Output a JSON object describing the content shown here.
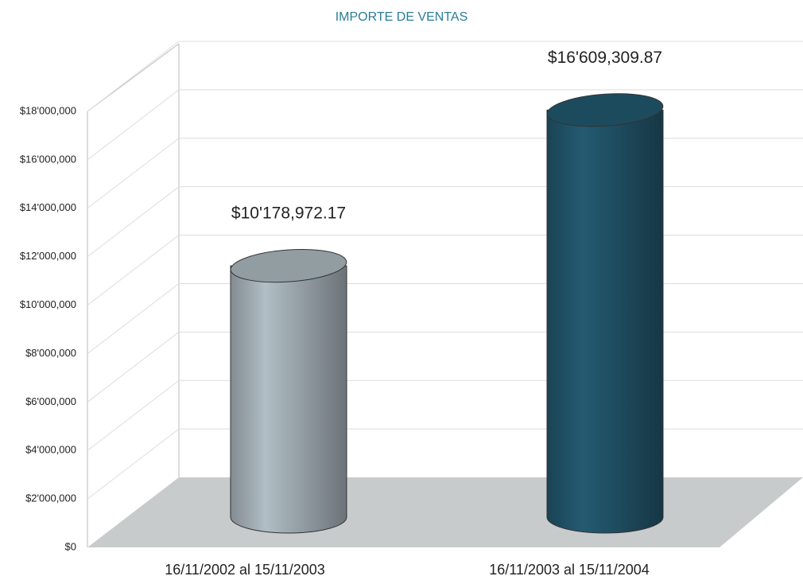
{
  "chart_data": {
    "type": "bar3d",
    "title": "IMPORTE DE VENTAS",
    "categories": [
      "16/11/2002 al 15/11/2003",
      "16/11/2003 al 15/11/2004"
    ],
    "values": [
      10178972.17,
      16609309.87
    ],
    "value_labels": [
      "$10'178,972.17",
      "$16'609,309.87"
    ],
    "colors": [
      "#9aa5ab",
      "#1f4f63"
    ],
    "ylim": [
      0,
      18000000
    ],
    "yticks": [
      {
        "value": 0,
        "label": "$0"
      },
      {
        "value": 2000000,
        "label": "$2'000,000"
      },
      {
        "value": 4000000,
        "label": "$4'000,000"
      },
      {
        "value": 6000000,
        "label": "$6'000,000"
      },
      {
        "value": 8000000,
        "label": "$8'000,000"
      },
      {
        "value": 10000000,
        "label": "$10'000,000"
      },
      {
        "value": 12000000,
        "label": "$12'000,000"
      },
      {
        "value": 14000000,
        "label": "$14'000,000"
      },
      {
        "value": 16000000,
        "label": "$16'000,000"
      },
      {
        "value": 18000000,
        "label": "$18'000,000"
      }
    ],
    "grid": true
  }
}
